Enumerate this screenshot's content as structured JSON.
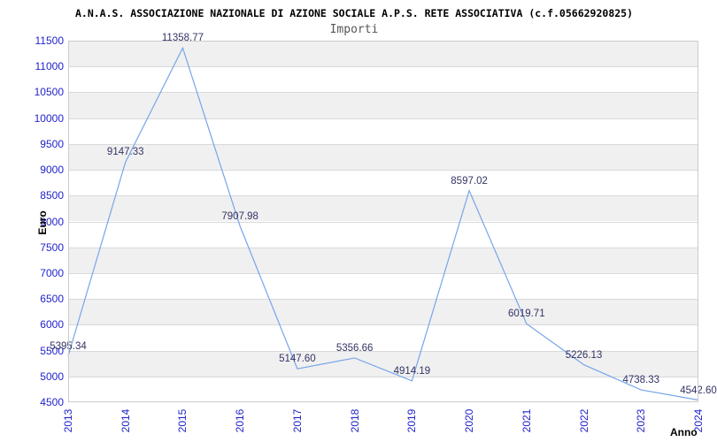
{
  "chart_data": {
    "type": "line",
    "title": "A.N.A.S. ASSOCIAZIONE NAZIONALE DI AZIONE SOCIALE A.P.S. RETE ASSOCIATIVA (c.f.05662920825)",
    "subtitle": "Importi",
    "xlabel": "Anno",
    "ylabel": "Euro",
    "categories": [
      "2013",
      "2014",
      "2015",
      "2016",
      "2017",
      "2018",
      "2019",
      "2020",
      "2021",
      "2022",
      "2023",
      "2024"
    ],
    "values": [
      5395.34,
      9147.33,
      11358.77,
      7907.98,
      5147.6,
      5356.66,
      4914.19,
      8597.02,
      6019.71,
      5226.13,
      4738.33,
      4542.6
    ],
    "point_labels": [
      "5395.34",
      "9147.33",
      "11358.77",
      "7907.98",
      "5147.60",
      "5356.66",
      "4914.19",
      "8597.02",
      "6019.71",
      "5226.13",
      "4738.33",
      "4542.60"
    ],
    "ylim": [
      4500,
      11500
    ],
    "ytick_step": 500,
    "grid": true,
    "legend_position": "none",
    "colors": {
      "line": "#77a5ea",
      "tick_label": "#2222cc",
      "point_label": "#333366",
      "band_gray": "#f0f0f0",
      "band_white": "#ffffff",
      "gridline": "#d9d9d9",
      "plot_border": "#cccccc",
      "title": "#000000",
      "subtitle": "#555555"
    }
  }
}
